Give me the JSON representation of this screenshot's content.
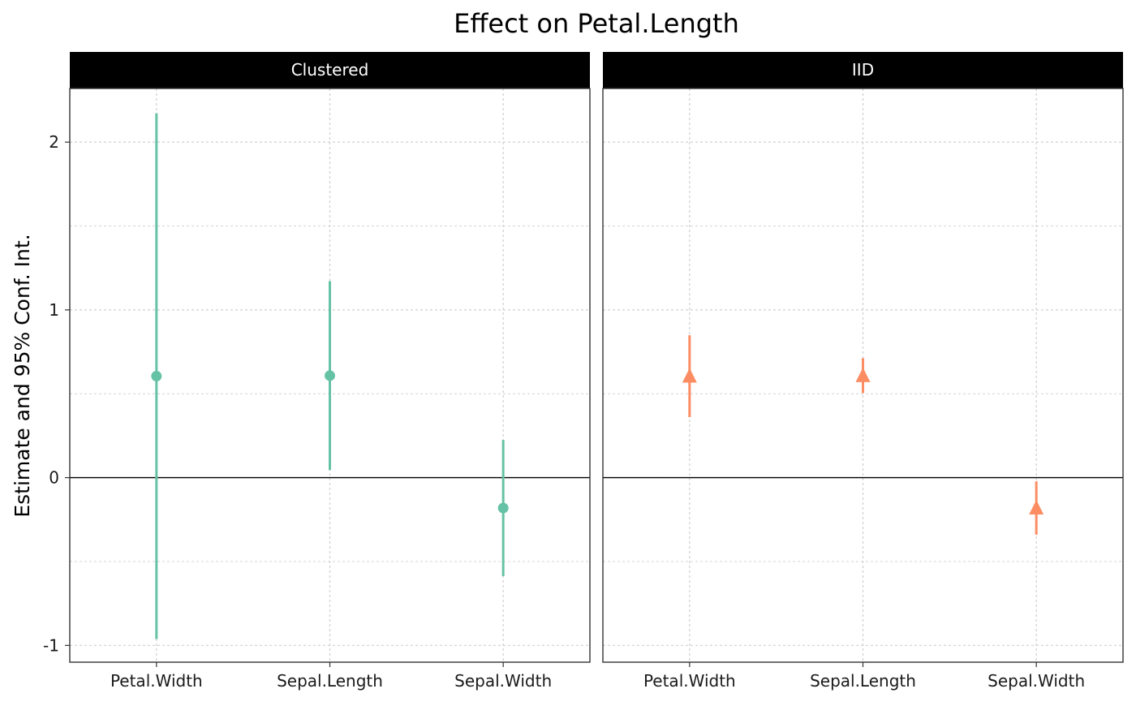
{
  "chart_data": {
    "type": "scatter",
    "title": "Effect on Petal.Length",
    "ylabel": "Estimate and 95% Conf. Int.",
    "xlabel": "",
    "categories": [
      "Petal.Width",
      "Sepal.Length",
      "Sepal.Width"
    ],
    "ylim": [
      -1.1,
      2.32
    ],
    "y_ticks": [
      -1,
      0,
      1,
      2
    ],
    "y_tick_labels": [
      "-1",
      "0",
      "1",
      "2"
    ],
    "grid": true,
    "reference_line": 0,
    "panels": [
      {
        "name": "Clustered",
        "color": "#66c2a5",
        "marker": "circle",
        "estimates": [
          0.605,
          0.608,
          -0.181
        ],
        "conf_low": [
          -0.962,
          0.045,
          -0.587
        ],
        "conf_high": [
          2.172,
          1.171,
          0.225
        ]
      },
      {
        "name": "IID",
        "color": "#fc8d62",
        "marker": "triangle",
        "estimates": [
          0.605,
          0.608,
          -0.181
        ],
        "conf_low": [
          0.361,
          0.504,
          -0.34
        ],
        "conf_high": [
          0.849,
          0.712,
          -0.022
        ]
      }
    ]
  }
}
